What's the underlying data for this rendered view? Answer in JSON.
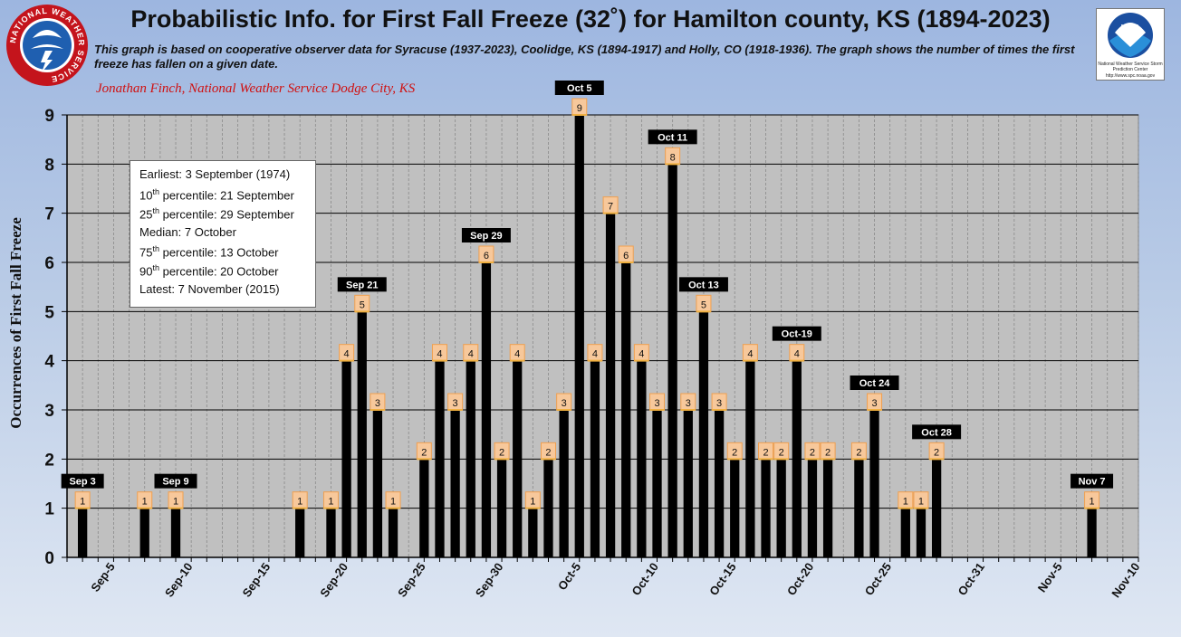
{
  "header": {
    "title": "Probabilistic Info. for First Fall Freeze (32˚) for Hamilton county, KS (1894-2023)",
    "subtitle": "This graph is based on cooperative observer data for Syracuse (1937-2023), Coolidge, KS (1894-1917) and Holly, CO (1918-1936).  The graph shows the number of times the first freeze has fallen on a given date.",
    "credit": "Jonathan Finch, National Weather Service Dodge City, KS"
  },
  "logos": {
    "nws_text": "NATIONAL WEATHER SERVICE",
    "noaa_text": "NOAA",
    "noaa_caption": "National Weather Service Storm Prediction Center",
    "noaa_url": "http://www.spc.noaa.gov"
  },
  "stats": {
    "earliest": "Earliest: 3 September (1974)",
    "p10": "10th percentile: 21 September",
    "p25": "25th percentile: 29 September",
    "median": "Median: 7 October",
    "p75": "75th percentile: 13 October",
    "p90": "90th percentile: 20 October",
    "latest": "Latest: 7 November (2015)"
  },
  "chart_data": {
    "type": "bar",
    "title": "Probabilistic Info. for First Fall Freeze (32˚) for Hamilton county, KS (1894-2023)",
    "xlabel": "",
    "ylabel": "Occurrences of First Fall Freeze",
    "ylim": [
      0,
      9
    ],
    "yticks": [
      0,
      1,
      2,
      3,
      4,
      5,
      6,
      7,
      8,
      9
    ],
    "grid": true,
    "x_ticks": [
      "Sep-5",
      "Sep-10",
      "Sep-15",
      "Sep-20",
      "Sep-25",
      "Sep-30",
      "Oct-5",
      "Oct-10",
      "Oct-15",
      "Oct-20",
      "Oct-25",
      "Oct-31",
      "Nov-5",
      "Nov-10"
    ],
    "x_tick_day": [
      5,
      10,
      15,
      20,
      25,
      30,
      35,
      40,
      45,
      50,
      55,
      61,
      66,
      71
    ],
    "day_range": [
      2,
      71
    ],
    "bars": [
      {
        "date": "Sep 3",
        "day": 3,
        "value": 1
      },
      {
        "date": "Sep 7",
        "day": 7,
        "value": 1
      },
      {
        "date": "Sep 9",
        "day": 9,
        "value": 1
      },
      {
        "date": "Sep 17",
        "day": 17,
        "value": 1
      },
      {
        "date": "Sep 19",
        "day": 19,
        "value": 1
      },
      {
        "date": "Sep 20",
        "day": 20,
        "value": 4
      },
      {
        "date": "Sep 21",
        "day": 21,
        "value": 5
      },
      {
        "date": "Sep 22",
        "day": 22,
        "value": 3
      },
      {
        "date": "Sep 23",
        "day": 23,
        "value": 1
      },
      {
        "date": "Sep 25",
        "day": 25,
        "value": 2
      },
      {
        "date": "Sep 26",
        "day": 26,
        "value": 4
      },
      {
        "date": "Sep 27",
        "day": 27,
        "value": 3
      },
      {
        "date": "Sep 28",
        "day": 28,
        "value": 4
      },
      {
        "date": "Sep 29",
        "day": 29,
        "value": 6
      },
      {
        "date": "Sep 30",
        "day": 30,
        "value": 2
      },
      {
        "date": "Oct 1",
        "day": 31,
        "value": 4
      },
      {
        "date": "Oct 2",
        "day": 32,
        "value": 1
      },
      {
        "date": "Oct 3",
        "day": 33,
        "value": 2
      },
      {
        "date": "Oct 4",
        "day": 34,
        "value": 3
      },
      {
        "date": "Oct 5",
        "day": 35,
        "value": 9
      },
      {
        "date": "Oct 6",
        "day": 36,
        "value": 4
      },
      {
        "date": "Oct 7",
        "day": 37,
        "value": 7
      },
      {
        "date": "Oct 8",
        "day": 38,
        "value": 6
      },
      {
        "date": "Oct 9",
        "day": 39,
        "value": 4
      },
      {
        "date": "Oct 10",
        "day": 40,
        "value": 3
      },
      {
        "date": "Oct 11",
        "day": 41,
        "value": 8
      },
      {
        "date": "Oct 12",
        "day": 42,
        "value": 3
      },
      {
        "date": "Oct 13",
        "day": 43,
        "value": 5
      },
      {
        "date": "Oct 14",
        "day": 44,
        "value": 3
      },
      {
        "date": "Oct 15",
        "day": 45,
        "value": 2
      },
      {
        "date": "Oct 16",
        "day": 46,
        "value": 4
      },
      {
        "date": "Oct 17",
        "day": 47,
        "value": 2
      },
      {
        "date": "Oct 18",
        "day": 48,
        "value": 2
      },
      {
        "date": "Oct 19",
        "day": 49,
        "value": 4
      },
      {
        "date": "Oct 20",
        "day": 50,
        "value": 2
      },
      {
        "date": "Oct 21",
        "day": 51,
        "value": 2
      },
      {
        "date": "Oct 23",
        "day": 53,
        "value": 2
      },
      {
        "date": "Oct 24",
        "day": 54,
        "value": 3
      },
      {
        "date": "Oct 26",
        "day": 56,
        "value": 1
      },
      {
        "date": "Oct 27",
        "day": 57,
        "value": 1
      },
      {
        "date": "Oct 28",
        "day": 58,
        "value": 2
      },
      {
        "date": "Nov 7",
        "day": 68,
        "value": 1
      }
    ],
    "annotations": [
      {
        "text": "Sep 3",
        "day": 3,
        "value": 1
      },
      {
        "text": "Sep 9",
        "day": 9,
        "value": 1
      },
      {
        "text": "Sep 21",
        "day": 21,
        "value": 5
      },
      {
        "text": "Sep 29",
        "day": 29,
        "value": 6
      },
      {
        "text": "Oct  5",
        "day": 35,
        "value": 9
      },
      {
        "text": "Oct 11",
        "day": 41,
        "value": 8
      },
      {
        "text": "Oct 13",
        "day": 43,
        "value": 5
      },
      {
        "text": "Oct-19",
        "day": 49,
        "value": 4
      },
      {
        "text": "Oct 24",
        "day": 54,
        "value": 3
      },
      {
        "text": "Oct 28",
        "day": 58,
        "value": 2
      },
      {
        "text": "Nov 7",
        "day": 68,
        "value": 1
      }
    ],
    "colors": {
      "bar": "#000000",
      "plot_bg": "#c0c0c0",
      "label_bg": "#f7c89b",
      "label_border": "#f0a050",
      "annotation_bg": "#000000",
      "annotation_text": "#ffffff"
    }
  }
}
